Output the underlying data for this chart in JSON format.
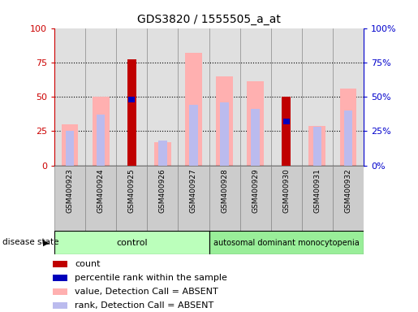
{
  "title": "GDS3820 / 1555505_a_at",
  "samples": [
    "GSM400923",
    "GSM400924",
    "GSM400925",
    "GSM400926",
    "GSM400927",
    "GSM400928",
    "GSM400929",
    "GSM400930",
    "GSM400931",
    "GSM400932"
  ],
  "count": [
    null,
    null,
    77,
    null,
    null,
    null,
    null,
    50,
    null,
    null
  ],
  "percentile_rank": [
    null,
    null,
    48,
    null,
    null,
    null,
    null,
    32,
    null,
    null
  ],
  "value_absent": [
    30,
    50,
    null,
    17,
    82,
    65,
    61,
    null,
    29,
    56
  ],
  "rank_absent": [
    25,
    37,
    null,
    18,
    44,
    46,
    41,
    null,
    28,
    40
  ],
  "ylim": [
    0,
    100
  ],
  "yticks": [
    0,
    25,
    50,
    75,
    100
  ],
  "color_count": "#c00000",
  "color_percentile": "#0000bb",
  "color_value_absent": "#ffb0b0",
  "color_rank_absent": "#bbbbee",
  "group_color_control": "#bbffbb",
  "group_color_disease": "#99ee99",
  "axis_left_color": "#cc0000",
  "axis_right_color": "#0000cc",
  "group_label_control": "control",
  "group_label_disease": "autosomal dominant monocytopenia",
  "legend_items": [
    "count",
    "percentile rank within the sample",
    "value, Detection Call = ABSENT",
    "rank, Detection Call = ABSENT"
  ],
  "legend_colors": [
    "#c00000",
    "#0000bb",
    "#ffb0b0",
    "#bbbbee"
  ],
  "n_control": 5,
  "n_disease": 5
}
